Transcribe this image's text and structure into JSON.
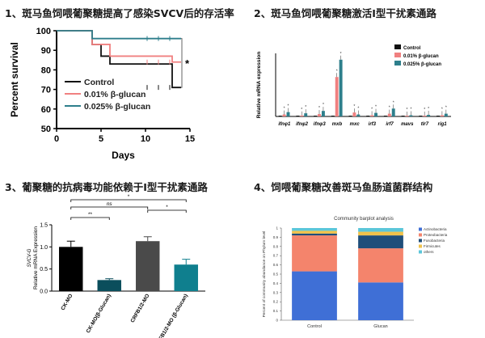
{
  "panels": {
    "p1_title": "1、斑马鱼饲喂葡聚糖提高了感染SVCV后的存活率",
    "p2_title": "2、斑马鱼饲喂葡聚糖激活I型干扰素通路",
    "p3_title": "3、葡聚糖的抗病毒功能依赖于I型干扰素通路",
    "p4_title": "4、饲喂葡聚糖改善斑马鱼肠道菌群结构"
  },
  "colors": {
    "control": "#111111",
    "glucan_low": "#f08080",
    "glucan_high": "#2e7f8c",
    "bar_black": "#000000",
    "bar_dark_teal": "#0b4e5c",
    "bar_gray": "#4a4a4a",
    "bar_teal": "#0f7f8e",
    "stack_blue": "#3f6fd6",
    "stack_salmon": "#f4846c",
    "stack_darkblue": "#1f4e7a",
    "stack_yellow": "#f0c24b",
    "stack_cyan": "#5bc6d9"
  },
  "chart_data": [
    {
      "type": "line",
      "subtype": "survival-step",
      "ylabel": "Percent survival",
      "xlabel": "Days",
      "xlim": [
        0,
        15
      ],
      "ylim": [
        50,
        100
      ],
      "xticks": [
        "0",
        "5",
        "10",
        "15"
      ],
      "yticks": [
        "50",
        "60",
        "70",
        "80",
        "90",
        "100"
      ],
      "significance": "*",
      "series": [
        {
          "name": "Control",
          "color_key": "control",
          "x": [
            0,
            4,
            4,
            5,
            5,
            6,
            6,
            13,
            13,
            14
          ],
          "y": [
            100,
            100,
            93,
            93,
            87,
            87,
            83,
            83,
            71,
            71
          ]
        },
        {
          "name": "0.01% β-glucan",
          "color_key": "glucan_low",
          "x": [
            0,
            4,
            4,
            6,
            6,
            13,
            13,
            14
          ],
          "y": [
            100,
            100,
            93,
            93,
            87,
            87,
            84,
            84
          ]
        },
        {
          "name": "0.025% β-glucan",
          "color_key": "glucan_high",
          "x": [
            0,
            4,
            4,
            14
          ],
          "y": [
            100,
            100,
            96,
            96
          ]
        }
      ]
    },
    {
      "type": "bar",
      "ylabel": "Relative mRNA expression",
      "categories": [
        "ifnφ1",
        "ifnφ2",
        "ifnφ3",
        "mxb",
        "mxc",
        "irf3",
        "irf7",
        "mavs",
        "tlr7",
        "rig1"
      ],
      "series": [
        {
          "name": "Control",
          "color_key": "control",
          "values": [
            1,
            1,
            1,
            1,
            1,
            1,
            1,
            1,
            1,
            1
          ]
        },
        {
          "name": "0.01% β-glucan",
          "color_key": "glucan_low",
          "values": [
            2.5,
            1.2,
            3.0,
            50,
            5.0,
            1.5,
            3.5,
            1.0,
            1.0,
            1.5
          ]
        },
        {
          "name": "0.025% β-glucan",
          "color_key": "glucan_high",
          "values": [
            5.5,
            4.0,
            7.0,
            72,
            2.5,
            4.5,
            10,
            1.5,
            2.0,
            3.5
          ]
        }
      ]
    },
    {
      "type": "bar",
      "ylabel_top": "SVCV-G",
      "ylabel": "Relative mRNA Expression",
      "ylim": [
        0,
        1.5
      ],
      "yticks": [
        "0.0",
        "0.5",
        "1.0",
        "1.5"
      ],
      "categories": [
        "CK-MO",
        "CK-MO(β-Glucan)",
        "CRFB1/2-MO",
        "CRFB1/2-MO (β-Glucan)"
      ],
      "values": [
        1.0,
        0.25,
        1.13,
        0.6
      ],
      "errors": [
        0.13,
        0.03,
        0.1,
        0.12
      ],
      "color_keys": [
        "bar_black",
        "bar_dark_teal",
        "bar_gray",
        "bar_teal"
      ],
      "brackets": [
        {
          "from": 0,
          "to": 1,
          "label": "**"
        },
        {
          "from": 0,
          "to": 2,
          "label": "ns"
        },
        {
          "from": 0,
          "to": 3,
          "label": "*"
        },
        {
          "from": 2,
          "to": 3,
          "label": "*"
        }
      ]
    },
    {
      "type": "bar",
      "subtype": "stacked-100",
      "title": "Community barplot analysis",
      "ylabel": "Percent of community abundance on Phylum level",
      "ylim": [
        0,
        1
      ],
      "yticks": [
        "0",
        "0.1",
        "0.2",
        "0.3",
        "0.4",
        "0.5",
        "0.6",
        "0.7",
        "0.8",
        "0.9",
        "1"
      ],
      "categories": [
        "Control",
        "Glucan"
      ],
      "series": [
        {
          "name": "Actinobacteria",
          "color_key": "stack_blue",
          "values": [
            0.53,
            0.41
          ]
        },
        {
          "name": "Proteobacteria",
          "color_key": "stack_salmon",
          "values": [
            0.39,
            0.37
          ]
        },
        {
          "name": "Fusobacteria",
          "color_key": "stack_darkblue",
          "values": [
            0.02,
            0.14
          ]
        },
        {
          "name": "Firmicutes",
          "color_key": "stack_yellow",
          "values": [
            0.03,
            0.04
          ]
        },
        {
          "name": "others",
          "color_key": "stack_cyan",
          "values": [
            0.03,
            0.04
          ]
        }
      ]
    }
  ]
}
